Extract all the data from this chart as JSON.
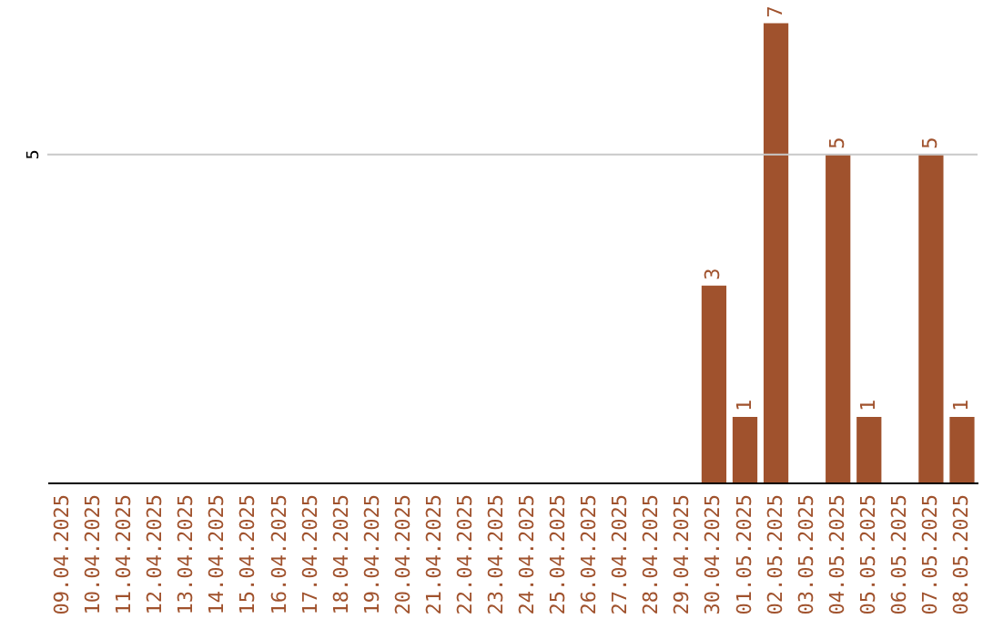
{
  "chart_data": {
    "type": "bar",
    "ylim": [
      0,
      7.3
    ],
    "categories": [
      "09.04.2025",
      "10.04.2025",
      "11.04.2025",
      "12.04.2025",
      "13.04.2025",
      "14.04.2025",
      "15.04.2025",
      "16.04.2025",
      "17.04.2025",
      "18.04.2025",
      "19.04.2025",
      "20.04.2025",
      "21.04.2025",
      "22.04.2025",
      "23.04.2025",
      "24.04.2025",
      "25.04.2025",
      "26.04.2025",
      "27.04.2025",
      "28.04.2025",
      "29.04.2025",
      "30.04.2025",
      "01.05.2025",
      "02.05.2025",
      "03.05.2025",
      "04.05.2025",
      "05.05.2025",
      "06.05.2025",
      "07.05.2025",
      "08.05.2025"
    ],
    "values": [
      null,
      null,
      null,
      null,
      null,
      null,
      null,
      null,
      null,
      null,
      null,
      null,
      null,
      null,
      null,
      null,
      null,
      null,
      null,
      null,
      null,
      3,
      1,
      7,
      null,
      5,
      1,
      null,
      5,
      1
    ],
    "value_labels": [
      null,
      null,
      null,
      null,
      null,
      null,
      null,
      null,
      null,
      null,
      null,
      null,
      null,
      null,
      null,
      null,
      null,
      null,
      null,
      null,
      null,
      "3",
      "1",
      "7",
      null,
      "5",
      "1",
      null,
      "5",
      "1"
    ],
    "color": "#a0522d",
    "ref_lines": [
      {
        "axis": "y",
        "value": 5,
        "label": "5",
        "color": "#c8c8c8"
      }
    ]
  }
}
